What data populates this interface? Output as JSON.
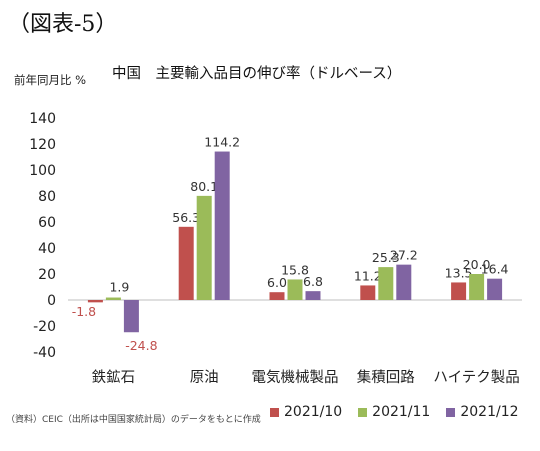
{
  "figure_label": "（図表-5）",
  "source_note": "（資料）CEIC（出所は中国国家統計局）のデータをもとに作成",
  "chart_data": {
    "type": "bar",
    "title": "中国　主要輸入品目の伸び率（ドルベース）",
    "ylabel": "前年同月比 %",
    "xlabel": "",
    "ylim": [
      -40,
      140
    ],
    "yticks": [
      -40,
      -20,
      0,
      20,
      40,
      60,
      80,
      100,
      120,
      140
    ],
    "grid": false,
    "legend_position": "bottom-right",
    "categories": [
      "鉄鉱石",
      "原油",
      "電気機械製品",
      "集積回路",
      "ハイテク製品"
    ],
    "series": [
      {
        "name": "2021/10",
        "color": "#c0504d",
        "values": [
          -1.8,
          56.3,
          6.0,
          11.2,
          13.5
        ],
        "labels": [
          "-1.8",
          "56.3",
          "6.0",
          "11.2",
          "13.5"
        ]
      },
      {
        "name": "2021/11",
        "color": "#9bbb59",
        "values": [
          1.9,
          80.1,
          15.8,
          25.3,
          20.0
        ],
        "labels": [
          "1.9",
          "80.1",
          "15.8",
          "25.3",
          "20.0"
        ]
      },
      {
        "name": "2021/12",
        "color": "#8064a2",
        "values": [
          -24.8,
          114.2,
          6.8,
          27.2,
          16.4
        ],
        "labels": [
          "-24.8",
          "114.2",
          "6.8",
          "27.2",
          "16.4"
        ]
      }
    ],
    "negative_label_color": "#c0504d"
  }
}
